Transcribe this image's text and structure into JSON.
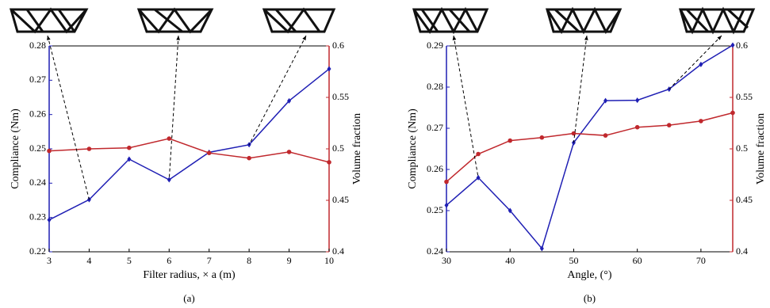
{
  "chart_data": [
    {
      "type": "line",
      "caption": "(a)",
      "xlabel": "Filter radius, × a (m)",
      "ylabel": "Compliance (Nm)",
      "y2label": "Volume fraction",
      "x": [
        3,
        4,
        5,
        6,
        7,
        8,
        9,
        10
      ],
      "xlim": [
        3,
        10
      ],
      "xticks": [
        3,
        4,
        5,
        6,
        7,
        8,
        9,
        10
      ],
      "ylim": [
        0.22,
        0.28
      ],
      "yticks": [
        0.22,
        0.23,
        0.24,
        0.25,
        0.26,
        0.27,
        0.28
      ],
      "y2lim": [
        0.4,
        0.6
      ],
      "y2ticks": [
        0.4,
        0.45,
        0.5,
        0.55,
        0.6
      ],
      "series": [
        {
          "color": "#1f1fb4",
          "marker": "diamond",
          "values": [
            0.2293,
            0.2352,
            0.247,
            0.241,
            0.249,
            0.2512,
            0.264,
            0.2733
          ]
        },
        {
          "color": "#c0282d",
          "marker": "circle",
          "axis": "y2",
          "values": [
            0.498,
            0.5,
            0.501,
            0.51,
            0.496,
            0.491,
            0.497,
            0.487
          ]
        }
      ]
    },
    {
      "type": "line",
      "caption": "(b)",
      "xlabel": "Angle, (°)",
      "ylabel": "Compliance (Nm)",
      "y2label": "Volume fraction",
      "x": [
        30,
        35,
        40,
        45,
        50,
        55,
        60,
        65,
        70,
        75
      ],
      "xlim": [
        30,
        75
      ],
      "xticks": [
        30,
        40,
        50,
        60,
        70
      ],
      "ylim": [
        0.24,
        0.29
      ],
      "yticks": [
        0.24,
        0.25,
        0.26,
        0.27,
        0.28,
        0.29
      ],
      "y2lim": [
        0.4,
        0.6
      ],
      "y2ticks": [
        0.4,
        0.45,
        0.5,
        0.55,
        0.6
      ],
      "series": [
        {
          "color": "#1f1fb4",
          "marker": "diamond",
          "values": [
            0.2513,
            0.258,
            0.25,
            0.2408,
            0.2665,
            0.2767,
            0.2768,
            0.2795,
            0.2855,
            0.2902
          ]
        },
        {
          "color": "#c0282d",
          "marker": "circle",
          "axis": "y2",
          "values": [
            0.468,
            0.495,
            0.508,
            0.511,
            0.515,
            0.513,
            0.521,
            0.523,
            0.527,
            0.535
          ]
        }
      ]
    }
  ]
}
